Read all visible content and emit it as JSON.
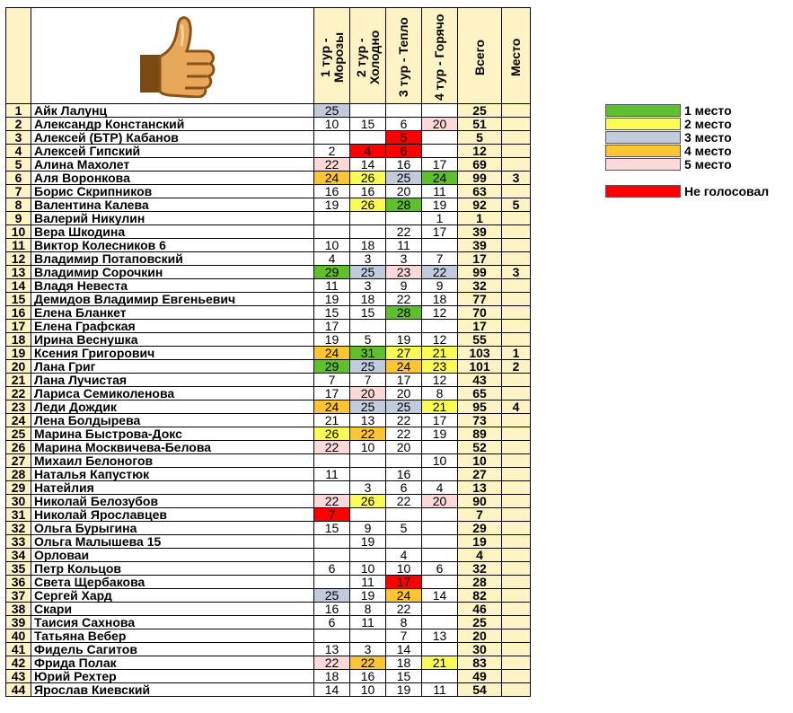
{
  "header": {
    "tours": [
      "1 тур - Морозы",
      "2 тур - Холодно",
      "3 тур - Тепло",
      "4 тур - Горячо"
    ],
    "total_label": "Всего",
    "place_label": "Место",
    "thumb_icon": "thumbs-up-icon"
  },
  "colors": {
    "c1": "#5fbf2c",
    "c2": "#fbfb57",
    "c3": "#c2cbdc",
    "c4": "#fdc533",
    "c5": "#fcd9d9",
    "cr": "#ff0000"
  },
  "legend": {
    "items": [
      {
        "label": "1 место",
        "color": "c1"
      },
      {
        "label": "2 место",
        "color": "c2"
      },
      {
        "label": "3 место",
        "color": "c3"
      },
      {
        "label": "4 место",
        "color": "c4"
      },
      {
        "label": "5 место",
        "color": "c5"
      }
    ],
    "not_voted": {
      "label": "Не голосовал",
      "color": "cr"
    }
  },
  "rows": [
    {
      "n": "1",
      "name": "Айк Лалунц",
      "v": [
        "25",
        "",
        "",
        ""
      ],
      "c": [
        "c3",
        "",
        "",
        ""
      ],
      "total": "25",
      "place": ""
    },
    {
      "n": "2",
      "name": "Александр Констанский",
      "v": [
        "10",
        "15",
        "6",
        "20"
      ],
      "c": [
        "",
        "",
        "",
        "c5"
      ],
      "total": "51",
      "place": ""
    },
    {
      "n": "3",
      "name": "Алексей (БТР) Кабанов",
      "v": [
        "",
        "",
        "5",
        ""
      ],
      "c": [
        "",
        "",
        "cr",
        ""
      ],
      "total": "5",
      "place": ""
    },
    {
      "n": "4",
      "name": "Алексей Гипский",
      "v": [
        "2",
        "4",
        "6",
        ""
      ],
      "c": [
        "",
        "cr",
        "cr",
        ""
      ],
      "total": "12",
      "place": ""
    },
    {
      "n": "5",
      "name": "Алина Махолет",
      "v": [
        "22",
        "14",
        "16",
        "17"
      ],
      "c": [
        "c5",
        "",
        "",
        ""
      ],
      "total": "69",
      "place": ""
    },
    {
      "n": "6",
      "name": "Аля Воронкова",
      "v": [
        "24",
        "26",
        "25",
        "24"
      ],
      "c": [
        "c4",
        "c2",
        "c3",
        "c1"
      ],
      "total": "99",
      "place": "3"
    },
    {
      "n": "7",
      "name": "Борис Скрипников",
      "v": [
        "16",
        "16",
        "20",
        "11"
      ],
      "c": [
        "",
        "",
        "",
        ""
      ],
      "total": "63",
      "place": ""
    },
    {
      "n": "8",
      "name": "Валентина Калева",
      "v": [
        "19",
        "26",
        "28",
        "19"
      ],
      "c": [
        "",
        "c2",
        "c1",
        ""
      ],
      "total": "92",
      "place": "5"
    },
    {
      "n": "9",
      "name": "Валерий Никулин",
      "v": [
        "",
        "",
        "",
        "1"
      ],
      "c": [
        "",
        "",
        "",
        ""
      ],
      "total": "1",
      "place": ""
    },
    {
      "n": "10",
      "name": "Вера Шкодина",
      "v": [
        "",
        "",
        "22",
        "17"
      ],
      "c": [
        "",
        "",
        "",
        ""
      ],
      "total": "39",
      "place": ""
    },
    {
      "n": "11",
      "name": "Виктор Колесников 6",
      "v": [
        "10",
        "18",
        "11",
        ""
      ],
      "c": [
        "",
        "",
        "",
        ""
      ],
      "total": "39",
      "place": ""
    },
    {
      "n": "12",
      "name": "Владимир Потаповский",
      "v": [
        "4",
        "3",
        "3",
        "7"
      ],
      "c": [
        "",
        "",
        "",
        ""
      ],
      "total": "17",
      "place": ""
    },
    {
      "n": "13",
      "name": "Владимир Сорочкин",
      "v": [
        "29",
        "25",
        "23",
        "22"
      ],
      "c": [
        "c1",
        "c3",
        "c5",
        "c3"
      ],
      "total": "99",
      "place": "3"
    },
    {
      "n": "14",
      "name": "Владя Невеста",
      "v": [
        "11",
        "3",
        "9",
        "9"
      ],
      "c": [
        "",
        "",
        "",
        ""
      ],
      "total": "32",
      "place": ""
    },
    {
      "n": "15",
      "name": "Демидов Владимир Евгеньевич",
      "v": [
        "19",
        "18",
        "22",
        "18"
      ],
      "c": [
        "",
        "",
        "",
        ""
      ],
      "total": "77",
      "place": ""
    },
    {
      "n": "16",
      "name": "Елена Бланкет",
      "v": [
        "15",
        "15",
        "28",
        "12"
      ],
      "c": [
        "",
        "",
        "c1",
        ""
      ],
      "total": "70",
      "place": ""
    },
    {
      "n": "17",
      "name": "Елена Графская",
      "v": [
        "17",
        "",
        "",
        ""
      ],
      "c": [
        "",
        "",
        "",
        ""
      ],
      "total": "17",
      "place": ""
    },
    {
      "n": "18",
      "name": "Ирина Веснушка",
      "v": [
        "19",
        "5",
        "19",
        "12"
      ],
      "c": [
        "",
        "",
        "",
        ""
      ],
      "total": "55",
      "place": ""
    },
    {
      "n": "19",
      "name": "Ксения Григорович",
      "v": [
        "24",
        "31",
        "27",
        "21"
      ],
      "c": [
        "c4",
        "c1",
        "c2",
        "c2"
      ],
      "total": "103",
      "place": "1"
    },
    {
      "n": "20",
      "name": "Лана Григ",
      "v": [
        "29",
        "25",
        "24",
        "23"
      ],
      "c": [
        "c1",
        "c3",
        "c4",
        "c2"
      ],
      "total": "101",
      "place": "2"
    },
    {
      "n": "21",
      "name": "Лана Лучистая",
      "v": [
        "7",
        "7",
        "17",
        "12"
      ],
      "c": [
        "",
        "",
        "",
        ""
      ],
      "total": "43",
      "place": ""
    },
    {
      "n": "22",
      "name": "Лариса Семиколенова",
      "v": [
        "17",
        "20",
        "20",
        "8"
      ],
      "c": [
        "",
        "c5",
        "",
        ""
      ],
      "total": "65",
      "place": ""
    },
    {
      "n": "23",
      "name": "Леди Дождик",
      "v": [
        "24",
        "25",
        "25",
        "21"
      ],
      "c": [
        "c4",
        "c3",
        "c3",
        "c2"
      ],
      "total": "95",
      "place": "4"
    },
    {
      "n": "24",
      "name": "Лена Болдырева",
      "v": [
        "21",
        "13",
        "22",
        "17"
      ],
      "c": [
        "",
        "",
        "",
        ""
      ],
      "total": "73",
      "place": ""
    },
    {
      "n": "25",
      "name": "Марина Быстрова-Докс",
      "v": [
        "26",
        "22",
        "22",
        "19"
      ],
      "c": [
        "c2",
        "c4",
        "",
        ""
      ],
      "total": "89",
      "place": ""
    },
    {
      "n": "26",
      "name": "Марина Москвичева-Белова",
      "v": [
        "22",
        "10",
        "20",
        ""
      ],
      "c": [
        "c5",
        "",
        "",
        ""
      ],
      "total": "52",
      "place": ""
    },
    {
      "n": "27",
      "name": "Михаил Белоногов",
      "v": [
        "",
        "",
        "",
        "10"
      ],
      "c": [
        "",
        "",
        "",
        ""
      ],
      "total": "10",
      "place": ""
    },
    {
      "n": "28",
      "name": "Наталья Капустюк",
      "v": [
        "11",
        "",
        "16",
        ""
      ],
      "c": [
        "",
        "",
        "",
        ""
      ],
      "total": "27",
      "place": ""
    },
    {
      "n": "29",
      "name": "Натейлия",
      "v": [
        "",
        "3",
        "6",
        "4"
      ],
      "c": [
        "",
        "",
        "",
        ""
      ],
      "total": "13",
      "place": ""
    },
    {
      "n": "30",
      "name": "Николай Белозубов",
      "v": [
        "22",
        "26",
        "22",
        "20"
      ],
      "c": [
        "c5",
        "c2",
        "",
        "c5"
      ],
      "total": "90",
      "place": ""
    },
    {
      "n": "31",
      "name": "Николай Ярославцев",
      "v": [
        "7",
        "",
        "",
        ""
      ],
      "c": [
        "cr",
        "",
        "",
        ""
      ],
      "total": "7",
      "place": ""
    },
    {
      "n": "32",
      "name": "Ольга Бурыгина",
      "v": [
        "15",
        "9",
        "5",
        ""
      ],
      "c": [
        "",
        "",
        "",
        ""
      ],
      "total": "29",
      "place": ""
    },
    {
      "n": "33",
      "name": "Ольга Малышева 15",
      "v": [
        "",
        "19",
        "",
        ""
      ],
      "c": [
        "",
        "",
        "",
        ""
      ],
      "total": "19",
      "place": ""
    },
    {
      "n": "34",
      "name": "Орловаи",
      "v": [
        "",
        "",
        "4",
        ""
      ],
      "c": [
        "",
        "",
        "",
        ""
      ],
      "total": "4",
      "place": ""
    },
    {
      "n": "35",
      "name": "Петр Кольцов",
      "v": [
        "6",
        "10",
        "10",
        "6"
      ],
      "c": [
        "",
        "",
        "",
        ""
      ],
      "total": "32",
      "place": ""
    },
    {
      "n": "36",
      "name": "Света Щербакова",
      "v": [
        "",
        "11",
        "17",
        ""
      ],
      "c": [
        "",
        "",
        "cr",
        ""
      ],
      "total": "28",
      "place": ""
    },
    {
      "n": "37",
      "name": "Сергей Хард",
      "v": [
        "25",
        "19",
        "24",
        "14"
      ],
      "c": [
        "c3",
        "",
        "c4",
        ""
      ],
      "total": "82",
      "place": ""
    },
    {
      "n": "38",
      "name": "Скари",
      "v": [
        "16",
        "8",
        "22",
        ""
      ],
      "c": [
        "",
        "",
        "",
        ""
      ],
      "total": "46",
      "place": ""
    },
    {
      "n": "39",
      "name": "Таисия Сахнова",
      "v": [
        "6",
        "11",
        "8",
        ""
      ],
      "c": [
        "",
        "",
        "",
        ""
      ],
      "total": "25",
      "place": ""
    },
    {
      "n": "40",
      "name": "Татьяна Вебер",
      "v": [
        "",
        "",
        "7",
        "13"
      ],
      "c": [
        "",
        "",
        "",
        ""
      ],
      "total": "20",
      "place": ""
    },
    {
      "n": "41",
      "name": "Фидель Сагитов",
      "v": [
        "13",
        "3",
        "14",
        ""
      ],
      "c": [
        "",
        "",
        "",
        ""
      ],
      "total": "30",
      "place": ""
    },
    {
      "n": "42",
      "name": "Фрида Полак",
      "v": [
        "22",
        "22",
        "18",
        "21"
      ],
      "c": [
        "c5",
        "c4",
        "",
        "c2"
      ],
      "total": "83",
      "place": ""
    },
    {
      "n": "43",
      "name": "Юрий Рехтер",
      "v": [
        "18",
        "16",
        "15",
        ""
      ],
      "c": [
        "",
        "",
        "",
        ""
      ],
      "total": "49",
      "place": ""
    },
    {
      "n": "44",
      "name": "Ярослав Киевский",
      "v": [
        "14",
        "10",
        "19",
        "11"
      ],
      "c": [
        "",
        "",
        "",
        ""
      ],
      "total": "54",
      "place": ""
    }
  ]
}
